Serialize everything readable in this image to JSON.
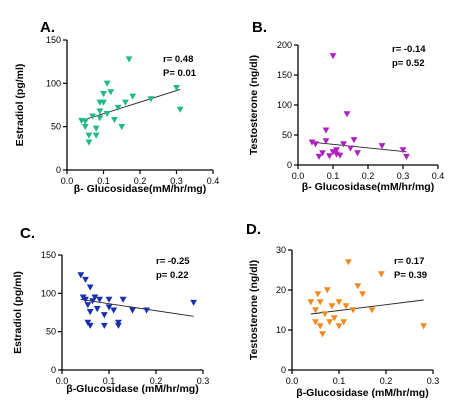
{
  "chart_data": [
    {
      "type": "scatter",
      "panel_label": "A.",
      "xlabel": "β- Glucosidase(mM/hr/mg)",
      "ylabel": "Estradiol (pg/ml)",
      "xlim": [
        0,
        0.4
      ],
      "ylim": [
        0,
        150
      ],
      "xticks": [
        "0.0",
        "0.1",
        "0.2",
        "0.3",
        "0.4"
      ],
      "yticks": [
        "0",
        "50",
        "100",
        "150"
      ],
      "color": "#1fb98a",
      "stats": [
        "r= 0.48",
        "P= 0.01"
      ],
      "trend": [
        [
          0.04,
          57
        ],
        [
          0.31,
          93
        ]
      ],
      "points": [
        [
          0.04,
          57
        ],
        [
          0.05,
          56
        ],
        [
          0.05,
          50
        ],
        [
          0.06,
          40
        ],
        [
          0.06,
          32
        ],
        [
          0.07,
          62
        ],
        [
          0.08,
          48
        ],
        [
          0.08,
          40
        ],
        [
          0.09,
          78
        ],
        [
          0.09,
          68
        ],
        [
          0.09,
          60
        ],
        [
          0.1,
          88
        ],
        [
          0.1,
          78
        ],
        [
          0.11,
          100
        ],
        [
          0.11,
          65
        ],
        [
          0.12,
          90
        ],
        [
          0.13,
          58
        ],
        [
          0.14,
          72
        ],
        [
          0.15,
          50
        ],
        [
          0.16,
          78
        ],
        [
          0.17,
          128
        ],
        [
          0.18,
          85
        ],
        [
          0.23,
          82
        ],
        [
          0.3,
          95
        ],
        [
          0.31,
          70
        ]
      ]
    },
    {
      "type": "scatter",
      "panel_label": "B.",
      "xlabel": "β- Glucosidase(mM/hr/mg)",
      "ylabel": "Testosterone (ng/dl)",
      "xlim": [
        0,
        0.4
      ],
      "ylim": [
        0,
        200
      ],
      "xticks": [
        "0.0",
        "0.1",
        "0.2",
        "0.3",
        "0.4"
      ],
      "yticks": [
        "0",
        "50",
        "100",
        "150",
        "200"
      ],
      "color": "#b01fc4",
      "stats": [
        "r= -0.14",
        "p= 0.52"
      ],
      "trend": [
        [
          0.04,
          38
        ],
        [
          0.31,
          22
        ]
      ],
      "points": [
        [
          0.04,
          38
        ],
        [
          0.05,
          35
        ],
        [
          0.06,
          14
        ],
        [
          0.07,
          20
        ],
        [
          0.08,
          58
        ],
        [
          0.08,
          40
        ],
        [
          0.09,
          15
        ],
        [
          0.1,
          22
        ],
        [
          0.1,
          182
        ],
        [
          0.11,
          25
        ],
        [
          0.11,
          18
        ],
        [
          0.12,
          16
        ],
        [
          0.13,
          35
        ],
        [
          0.14,
          85
        ],
        [
          0.15,
          28
        ],
        [
          0.16,
          42
        ],
        [
          0.17,
          20
        ],
        [
          0.24,
          32
        ],
        [
          0.3,
          25
        ],
        [
          0.31,
          14
        ]
      ]
    },
    {
      "type": "scatter",
      "panel_label": "C.",
      "xlabel": "β-Glucosidase (mM/hr/mg)",
      "ylabel": "Estradiol (pg/ml)",
      "xlim": [
        0,
        0.3
      ],
      "ylim": [
        0,
        150
      ],
      "xticks": [
        "0.0",
        "0.1",
        "0.2",
        "0.3"
      ],
      "yticks": [
        "0",
        "50",
        "100",
        "150"
      ],
      "color": "#1a2fb0",
      "stats": [
        "r= -0.25",
        "p= 0.22"
      ],
      "trend": [
        [
          0.04,
          92
        ],
        [
          0.28,
          70
        ]
      ],
      "points": [
        [
          0.04,
          124
        ],
        [
          0.045,
          95
        ],
        [
          0.05,
          118
        ],
        [
          0.05,
          92
        ],
        [
          0.055,
          85
        ],
        [
          0.055,
          62
        ],
        [
          0.06,
          108
        ],
        [
          0.06,
          76
        ],
        [
          0.06,
          58
        ],
        [
          0.065,
          90
        ],
        [
          0.07,
          95
        ],
        [
          0.075,
          80
        ],
        [
          0.08,
          92
        ],
        [
          0.09,
          72
        ],
        [
          0.09,
          58
        ],
        [
          0.1,
          92
        ],
        [
          0.1,
          82
        ],
        [
          0.11,
          78
        ],
        [
          0.12,
          62
        ],
        [
          0.12,
          58
        ],
        [
          0.13,
          92
        ],
        [
          0.15,
          78
        ],
        [
          0.18,
          78
        ],
        [
          0.28,
          88
        ]
      ]
    },
    {
      "type": "scatter",
      "panel_label": "D.",
      "xlabel": "β-Glucosidase (mM/hr/mg)",
      "ylabel": "Testosterone (ng/dl)",
      "xlim": [
        0,
        0.3
      ],
      "ylim": [
        0,
        30
      ],
      "xticks": [
        "0.0",
        "0.1",
        "0.2",
        "0.3"
      ],
      "yticks": [
        "0",
        "10",
        "20",
        "30"
      ],
      "color": "#f08a1c",
      "stats": [
        "r= 0.17",
        "P= 0.39"
      ],
      "trend": [
        [
          0.04,
          14
        ],
        [
          0.28,
          17.5
        ]
      ],
      "points": [
        [
          0.04,
          17
        ],
        [
          0.05,
          15
        ],
        [
          0.05,
          12
        ],
        [
          0.055,
          19
        ],
        [
          0.06,
          17
        ],
        [
          0.06,
          11
        ],
        [
          0.065,
          9
        ],
        [
          0.07,
          14
        ],
        [
          0.075,
          20
        ],
        [
          0.08,
          12
        ],
        [
          0.085,
          16
        ],
        [
          0.09,
          13
        ],
        [
          0.1,
          17
        ],
        [
          0.1,
          11
        ],
        [
          0.11,
          12
        ],
        [
          0.115,
          16
        ],
        [
          0.12,
          27
        ],
        [
          0.13,
          15
        ],
        [
          0.14,
          21
        ],
        [
          0.15,
          19
        ],
        [
          0.17,
          15
        ],
        [
          0.19,
          24
        ],
        [
          0.28,
          11
        ]
      ]
    }
  ]
}
